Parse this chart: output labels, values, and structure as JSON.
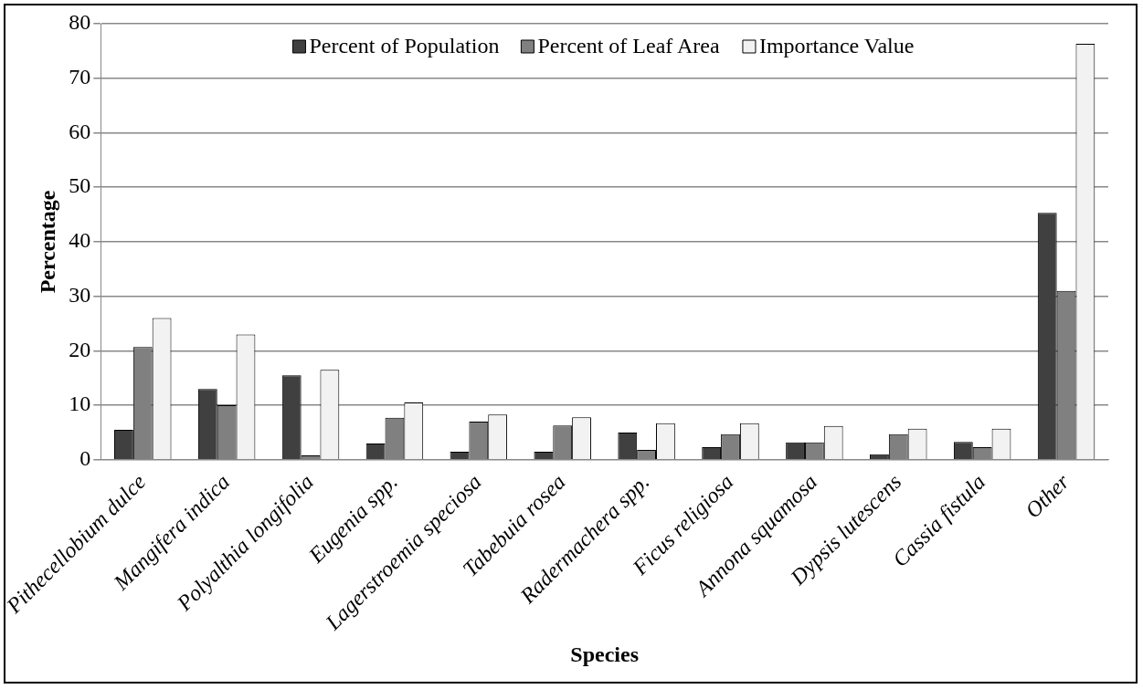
{
  "chart_data": {
    "type": "bar",
    "xlabel": "Species",
    "ylabel": "Percentage",
    "categories": [
      "Pithecellobium dulce",
      "Mangifera indica",
      "Polyalthia longifolia",
      "Eugenia spp.",
      "Lagerstroemia speciosa",
      "Tabebuia rosea",
      "Radermachera spp.",
      "Ficus religiosa",
      "Annona squamosa",
      "Dypsis lutescens",
      "Cassia fistula",
      "Other"
    ],
    "series": [
      {
        "name": "Percent of Population",
        "color": "#404040",
        "values": [
          5.5,
          13,
          15.5,
          3,
          1.5,
          1.5,
          5,
          2.3,
          3.2,
          1,
          3.3,
          45.3
        ]
      },
      {
        "name": "Percent of Leaf Area",
        "color": "#808080",
        "values": [
          20.7,
          10,
          0.8,
          7.7,
          7,
          6.3,
          1.8,
          4.7,
          3.2,
          4.7,
          2.3,
          31
        ]
      },
      {
        "name": "Importance Value",
        "color": "#f2f2f2",
        "values": [
          26,
          23,
          16.5,
          10.5,
          8.3,
          7.8,
          6.7,
          6.7,
          6.2,
          5.7,
          5.7,
          76.3
        ]
      }
    ],
    "ylim": [
      0,
      80
    ],
    "yticks": [
      0,
      10,
      20,
      30,
      40,
      50,
      60,
      70,
      80
    ],
    "grid": "y",
    "legend": "top"
  }
}
